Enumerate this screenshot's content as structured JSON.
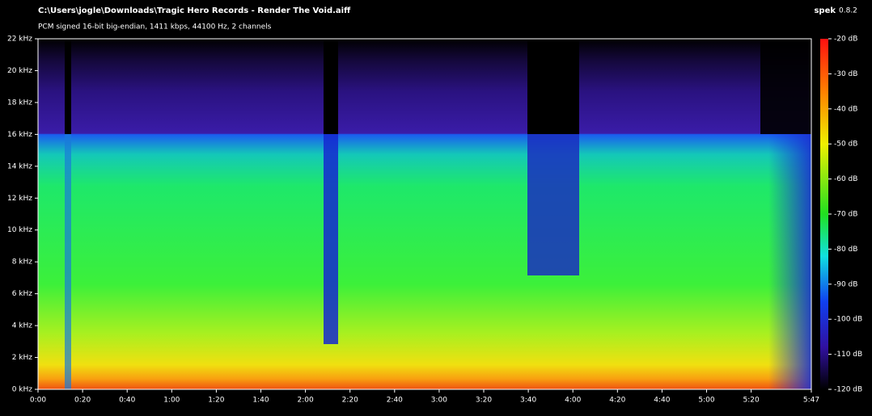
{
  "header": {
    "title": "C:\\Users\\jogle\\Downloads\\Tragic Hero Records - Render The Void.aiff",
    "app": "spek",
    "version": "0.8.2",
    "subtitle": "PCM signed 16-bit big-endian, 1411 kbps, 44100 Hz, 2 channels"
  },
  "frequency_axis": {
    "ticks": [
      "0 kHz",
      "2 kHz",
      "4 kHz",
      "6 kHz",
      "8 kHz",
      "10 kHz",
      "12 kHz",
      "14 kHz",
      "16 kHz",
      "18 kHz",
      "20 kHz",
      "22 kHz"
    ]
  },
  "time_axis": {
    "ticks": [
      "0:00",
      "0:20",
      "0:40",
      "1:00",
      "1:20",
      "1:40",
      "2:00",
      "2:20",
      "2:40",
      "3:00",
      "3:20",
      "3:40",
      "4:00",
      "4:20",
      "4:40",
      "5:00",
      "5:20",
      "5:47"
    ]
  },
  "level_scale": {
    "ticks": [
      "-20 dB",
      "-30 dB",
      "-40 dB",
      "-50 dB",
      "-60 dB",
      "-70 dB",
      "-80 dB",
      "-90 dB",
      "-100 dB",
      "-110 dB",
      "-120 dB"
    ]
  }
}
